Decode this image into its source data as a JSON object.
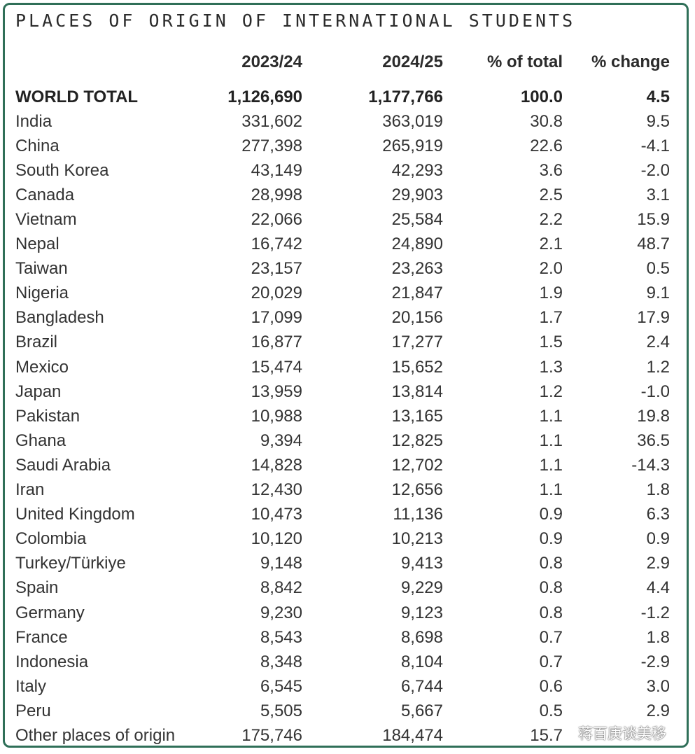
{
  "title": "PLACES OF ORIGIN OF INTERNATIONAL STUDENTS",
  "headers": {
    "name": "",
    "year1": "2023/24",
    "year2": "2024/25",
    "pct_total": "% of total",
    "pct_change": "% change"
  },
  "total": {
    "name": "WORLD TOTAL",
    "year1": "1,126,690",
    "year2": "1,177,766",
    "pct_total": "100.0",
    "pct_change": "4.5"
  },
  "rows": [
    {
      "name": "India",
      "year1": "331,602",
      "year2": "363,019",
      "pct_total": "30.8",
      "pct_change": "9.5"
    },
    {
      "name": "China",
      "year1": "277,398",
      "year2": "265,919",
      "pct_total": "22.6",
      "pct_change": "-4.1"
    },
    {
      "name": "South Korea",
      "year1": "43,149",
      "year2": "42,293",
      "pct_total": "3.6",
      "pct_change": "-2.0"
    },
    {
      "name": "Canada",
      "year1": "28,998",
      "year2": "29,903",
      "pct_total": "2.5",
      "pct_change": "3.1"
    },
    {
      "name": "Vietnam",
      "year1": "22,066",
      "year2": "25,584",
      "pct_total": "2.2",
      "pct_change": "15.9"
    },
    {
      "name": "Nepal",
      "year1": "16,742",
      "year2": "24,890",
      "pct_total": "2.1",
      "pct_change": "48.7"
    },
    {
      "name": "Taiwan",
      "year1": "23,157",
      "year2": "23,263",
      "pct_total": "2.0",
      "pct_change": "0.5"
    },
    {
      "name": "Nigeria",
      "year1": "20,029",
      "year2": "21,847",
      "pct_total": "1.9",
      "pct_change": "9.1"
    },
    {
      "name": "Bangladesh",
      "year1": "17,099",
      "year2": "20,156",
      "pct_total": "1.7",
      "pct_change": "17.9"
    },
    {
      "name": "Brazil",
      "year1": "16,877",
      "year2": "17,277",
      "pct_total": "1.5",
      "pct_change": "2.4"
    },
    {
      "name": "Mexico",
      "year1": "15,474",
      "year2": "15,652",
      "pct_total": "1.3",
      "pct_change": "1.2"
    },
    {
      "name": "Japan",
      "year1": "13,959",
      "year2": "13,814",
      "pct_total": "1.2",
      "pct_change": "-1.0"
    },
    {
      "name": "Pakistan",
      "year1": "10,988",
      "year2": "13,165",
      "pct_total": "1.1",
      "pct_change": "19.8"
    },
    {
      "name": "Ghana",
      "year1": "9,394",
      "year2": "12,825",
      "pct_total": "1.1",
      "pct_change": "36.5"
    },
    {
      "name": "Saudi Arabia",
      "year1": "14,828",
      "year2": "12,702",
      "pct_total": "1.1",
      "pct_change": "-14.3"
    },
    {
      "name": "Iran",
      "year1": "12,430",
      "year2": "12,656",
      "pct_total": "1.1",
      "pct_change": "1.8"
    },
    {
      "name": "United Kingdom",
      "year1": "10,473",
      "year2": "11,136",
      "pct_total": "0.9",
      "pct_change": "6.3"
    },
    {
      "name": "Colombia",
      "year1": "10,120",
      "year2": "10,213",
      "pct_total": "0.9",
      "pct_change": "0.9"
    },
    {
      "name": "Turkey/Türkiye",
      "year1": "9,148",
      "year2": "9,413",
      "pct_total": "0.8",
      "pct_change": "2.9"
    },
    {
      "name": "Spain",
      "year1": "8,842",
      "year2": "9,229",
      "pct_total": "0.8",
      "pct_change": "4.4"
    },
    {
      "name": "Germany",
      "year1": "9,230",
      "year2": "9,123",
      "pct_total": "0.8",
      "pct_change": "-1.2"
    },
    {
      "name": "France",
      "year1": "8,543",
      "year2": "8,698",
      "pct_total": "0.7",
      "pct_change": "1.8"
    },
    {
      "name": "Indonesia",
      "year1": "8,348",
      "year2": "8,104",
      "pct_total": "0.7",
      "pct_change": "-2.9"
    },
    {
      "name": "Italy",
      "year1": "6,545",
      "year2": "6,744",
      "pct_total": "0.6",
      "pct_change": "3.0"
    },
    {
      "name": "Peru",
      "year1": "5,505",
      "year2": "5,667",
      "pct_total": "0.5",
      "pct_change": "2.9"
    },
    {
      "name": "Other places of origin",
      "year1": "175,746",
      "year2": "184,474",
      "pct_total": "15.7",
      "pct_change": ""
    }
  ],
  "watermark": "蒋百庚谈美移",
  "colors": {
    "border": "#2f6f58",
    "text": "#333333"
  }
}
